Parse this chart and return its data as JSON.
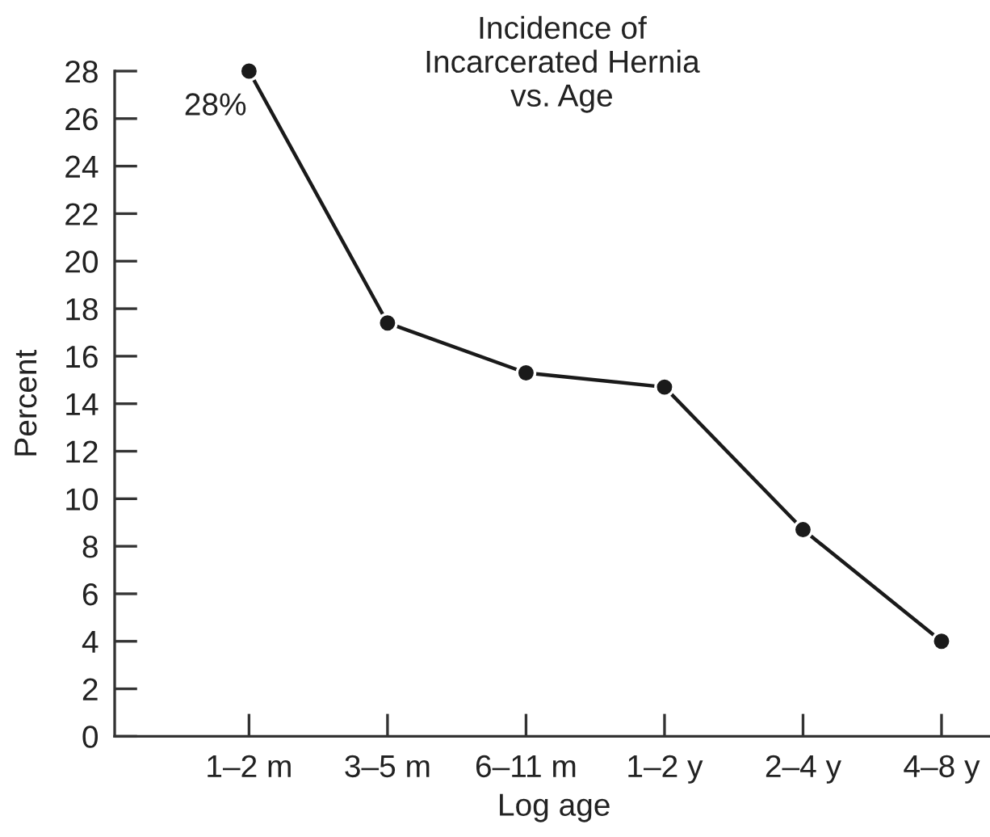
{
  "chart_data": {
    "type": "line",
    "title": "Incidence of\nIncarcerated Hernia\nvs. Age",
    "xlabel": "Log age",
    "ylabel": "Percent",
    "categories": [
      "1–2 m",
      "3–5 m",
      "6–11 m",
      "1–2 y",
      "2–4 y",
      "4–8 y"
    ],
    "series": [
      {
        "color": "#1a1a1a",
        "values": [
          28,
          17.4,
          15.3,
          14.7,
          8.7,
          4.0
        ],
        "value_labels": [
          "28%",
          null,
          null,
          null,
          null,
          null
        ]
      }
    ],
    "ylim": [
      0,
      28
    ],
    "yticks": [
      0,
      2,
      4,
      6,
      8,
      10,
      12,
      14,
      16,
      18,
      20,
      22,
      24,
      26,
      28
    ],
    "marker": "circle",
    "line_style": "solid"
  }
}
